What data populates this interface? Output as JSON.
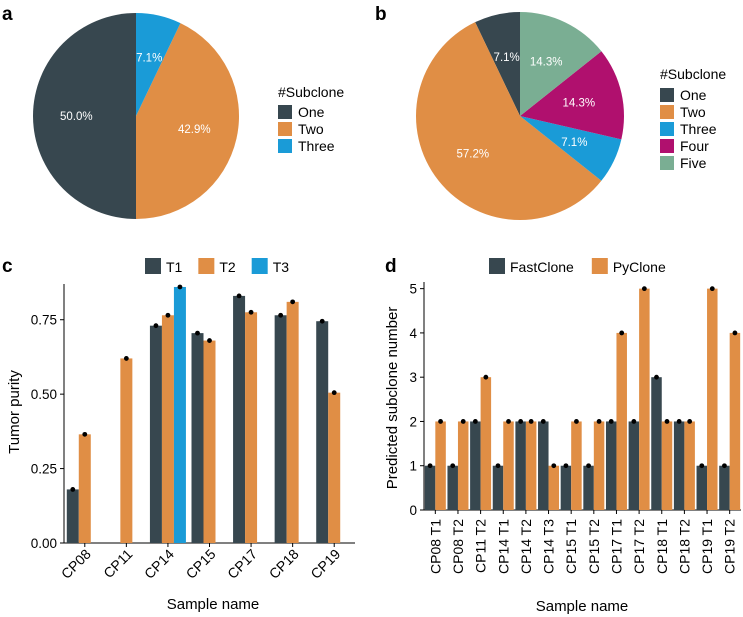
{
  "colors": {
    "one": "#37474f",
    "two": "#e08e45",
    "three": "#1a9bd7",
    "four": "#b0106e",
    "five": "#7aae93",
    "axis": "#000000",
    "dot": "#000000"
  },
  "chart_data": [
    {
      "panel": "a",
      "type": "pie",
      "legend_title": "#Subclone",
      "legend_position": "right",
      "slices": [
        {
          "name": "One",
          "value": 50.0,
          "label": "50.0%",
          "color": "#37474f"
        },
        {
          "name": "Two",
          "value": 42.9,
          "label": "42.9%",
          "color": "#e08e45"
        },
        {
          "name": "Three",
          "value": 7.1,
          "label": "7.1%",
          "color": "#1a9bd7"
        }
      ]
    },
    {
      "panel": "b",
      "type": "pie",
      "legend_title": "#Subclone",
      "legend_position": "right",
      "slices": [
        {
          "name": "One",
          "value": 7.1,
          "label": "7.1%",
          "color": "#37474f"
        },
        {
          "name": "Two",
          "value": 57.2,
          "label": "57.2%",
          "color": "#e08e45"
        },
        {
          "name": "Three",
          "value": 7.1,
          "label": "7.1%",
          "color": "#1a9bd7"
        },
        {
          "name": "Four",
          "value": 14.3,
          "label": "14.3%",
          "color": "#b0106e"
        },
        {
          "name": "Five",
          "value": 14.3,
          "label": "14.3%",
          "color": "#7aae93"
        }
      ]
    },
    {
      "panel": "c",
      "type": "bar",
      "xlabel": "Sample name",
      "ylabel": "Tumor purity",
      "ylim": [
        0,
        0.87
      ],
      "yticks": [
        0.0,
        0.25,
        0.5,
        0.75
      ],
      "ytick_labels": [
        "0.00",
        "0.25",
        "0.50",
        "0.75"
      ],
      "legend_position": "top",
      "categories": [
        "CP08",
        "CP11",
        "CP14",
        "CP15",
        "CP17",
        "CP18",
        "CP19"
      ],
      "series": [
        {
          "name": "T1",
          "color": "#37474f",
          "values": [
            0.18,
            null,
            0.73,
            0.705,
            0.83,
            0.765,
            0.745
          ]
        },
        {
          "name": "T2",
          "color": "#e08e45",
          "values": [
            0.365,
            0.62,
            0.765,
            0.68,
            0.775,
            0.81,
            0.505
          ]
        },
        {
          "name": "T3",
          "color": "#1a9bd7",
          "values": [
            null,
            null,
            0.86,
            null,
            null,
            null,
            null
          ]
        }
      ]
    },
    {
      "panel": "d",
      "type": "bar",
      "xlabel": "Sample name",
      "ylabel": "Predicted subclone number",
      "ylim": [
        0,
        5.15
      ],
      "yticks": [
        0,
        1,
        2,
        3,
        4,
        5
      ],
      "ytick_labels": [
        "0",
        "1",
        "2",
        "3",
        "4",
        "5"
      ],
      "legend_position": "top",
      "categories": [
        "CP08 T1",
        "CP08 T2",
        "CP11 T2",
        "CP14 T1",
        "CP14 T2",
        "CP14 T3",
        "CP15 T1",
        "CP15 T2",
        "CP17 T1",
        "CP17 T2",
        "CP18 T1",
        "CP18 T2",
        "CP19 T1",
        "CP19 T2"
      ],
      "series": [
        {
          "name": "FastClone",
          "color": "#37474f",
          "values": [
            1,
            1,
            2,
            1,
            2,
            2,
            1,
            1,
            2,
            2,
            3,
            2,
            1,
            1
          ]
        },
        {
          "name": "PyClone",
          "color": "#e08e45",
          "values": [
            2,
            2,
            3,
            2,
            2,
            1,
            2,
            2,
            4,
            5,
            2,
            2,
            5,
            4
          ]
        }
      ]
    }
  ]
}
